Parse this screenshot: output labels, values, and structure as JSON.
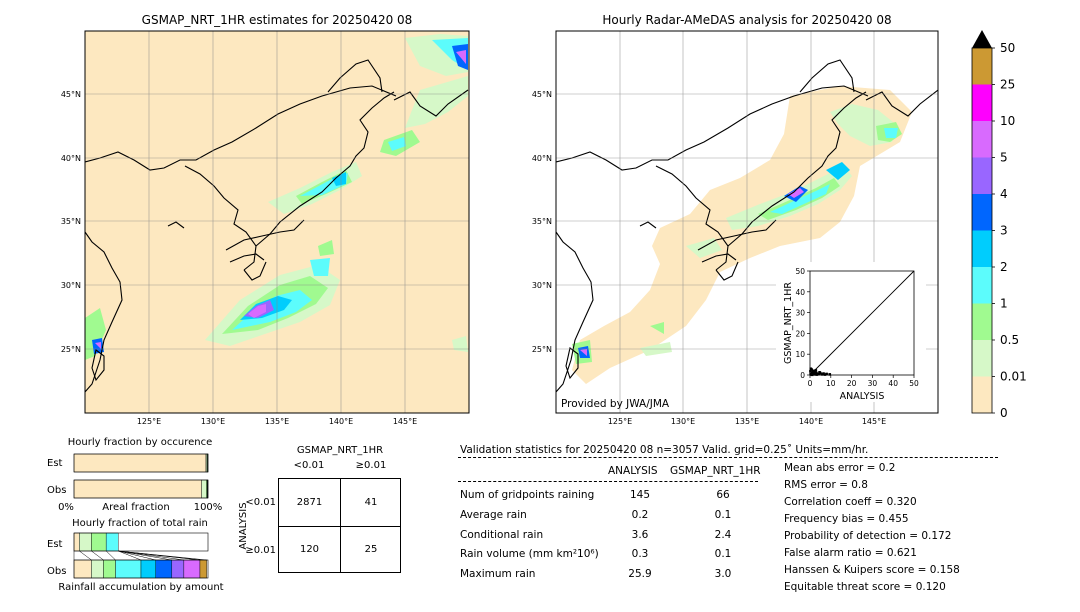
{
  "chart_data": [
    {
      "type": "map",
      "title": "GSMAP_NRT_1HR estimates for 20250420 08",
      "lon_ticks": [
        "125°E",
        "130°E",
        "135°E",
        "140°E",
        "145°E"
      ],
      "lat_ticks": [
        "45°N",
        "40°N",
        "35°N",
        "30°N",
        "25°N"
      ]
    },
    {
      "type": "map",
      "title": "Hourly Radar-AMeDAS analysis for 20250420 08",
      "lon_ticks": [
        "125°E",
        "130°E",
        "135°E",
        "140°E",
        "145°E"
      ],
      "lat_ticks": [
        "45°N",
        "40°N",
        "35°N",
        "30°N",
        "25°N"
      ],
      "credit": "Provided by JWA/JMA"
    },
    {
      "type": "scatter",
      "xlabel": "ANALYSIS",
      "ylabel": "GSMAP_NRT_1HR",
      "xlim": [
        0,
        50
      ],
      "ylim": [
        0,
        50
      ],
      "ticks": [
        "0",
        "10",
        "20",
        "30",
        "40",
        "50"
      ],
      "points": [
        [
          0.3,
          0.4
        ],
        [
          0.6,
          0.2
        ],
        [
          1.0,
          1.2
        ],
        [
          1.4,
          0.5
        ],
        [
          2.0,
          0.8
        ],
        [
          2.5,
          0.3
        ],
        [
          3.0,
          1.0
        ],
        [
          3.6,
          0.6
        ],
        [
          4.2,
          0.4
        ],
        [
          5.0,
          0.9
        ],
        [
          5.8,
          0.3
        ],
        [
          6.5,
          0.7
        ],
        [
          7.2,
          0.2
        ],
        [
          0.8,
          2.6
        ],
        [
          1.5,
          2.0
        ],
        [
          2.2,
          1.6
        ],
        [
          0.4,
          3.0
        ],
        [
          1.1,
          0.1
        ],
        [
          3.3,
          0.2
        ],
        [
          4.6,
          1.3
        ],
        [
          8.0,
          0.5
        ],
        [
          9.5,
          0.3
        ],
        [
          0.2,
          1.8
        ],
        [
          2.8,
          2.2
        ]
      ]
    },
    {
      "type": "colorbar",
      "levels": [
        "0",
        "0.01",
        "0.5",
        "1",
        "2",
        "3",
        "4",
        "5",
        "10",
        "25",
        "50"
      ],
      "colors": [
        "#fde8c0",
        "#d6f8c8",
        "#a0fa90",
        "#5cfcfc",
        "#00cdfd",
        "#0066fe",
        "#9966ff",
        "#d86afe",
        "#fe00fe",
        "#cc9933"
      ]
    },
    {
      "type": "bar",
      "title": "Hourly fraction by occurence",
      "categories": [
        "Est",
        "Obs"
      ],
      "xlabel": "Areal fraction",
      "xticks": [
        "0%",
        "100%"
      ],
      "series": [
        {
          "values": [
            0.985,
            0.952
          ]
        },
        {
          "values": [
            0.008,
            0.036
          ]
        },
        {
          "values": [
            0.004,
            0.007
          ]
        },
        {
          "values": [
            0.002,
            0.003
          ]
        },
        {
          "values": [
            0.001,
            0.002
          ]
        }
      ]
    },
    {
      "type": "bar",
      "title": "Hourly fraction of total rain",
      "categories": [
        "Est",
        "Obs"
      ],
      "xlabel": "Rainfall accumulation by amount",
      "series": [
        {
          "values": [
            0.04,
            0.13
          ]
        },
        {
          "values": [
            0.09,
            0.09
          ]
        },
        {
          "values": [
            0.11,
            0.09
          ]
        },
        {
          "values": [
            0.09,
            0.19
          ]
        },
        {
          "values": [
            0.0,
            0.11
          ]
        },
        {
          "values": [
            0.0,
            0.12
          ]
        },
        {
          "values": [
            0.0,
            0.09
          ]
        },
        {
          "values": [
            0.0,
            0.12
          ]
        },
        {
          "values": [
            0.0,
            0.0
          ]
        },
        {
          "values": [
            0.0,
            0.05
          ]
        }
      ]
    }
  ],
  "contingency": {
    "title": "GSMAP_NRT_1HR",
    "col_labels": [
      "<0.01",
      "≥0.01"
    ],
    "row_title": "ANALYSIS",
    "row_labels": [
      "<0.01",
      "≥0.01"
    ],
    "cells": [
      [
        "2871",
        "41"
      ],
      [
        "120",
        "25"
      ]
    ]
  },
  "validation": {
    "header": "Validation statistics for 20250420 08  n=3057 Valid. grid=0.25˚ Units=mm/hr.",
    "col_analysis": "ANALYSIS",
    "col_gsmap": "GSMAP_NRT_1HR",
    "rows": [
      {
        "label": "Num of gridpoints raining",
        "analysis": "145",
        "gsmap": "66"
      },
      {
        "label": "Average rain",
        "analysis": "0.2",
        "gsmap": "0.1"
      },
      {
        "label": "Conditional rain",
        "analysis": "3.6",
        "gsmap": "2.4"
      },
      {
        "label": "Rain volume (mm km²10⁶)",
        "analysis": "0.3",
        "gsmap": "0.1"
      },
      {
        "label": "Maximum rain",
        "analysis": "25.9",
        "gsmap": "3.0"
      }
    ],
    "scores": [
      "Mean abs error =    0.2",
      "RMS error =    0.8",
      "Correlation coeff =  0.320",
      "Frequency bias =  0.455",
      "Probability of detection =  0.172",
      "False alarm ratio =  0.621",
      "Hanssen & Kuipers score =  0.158",
      "Equitable threat score =  0.120"
    ]
  }
}
